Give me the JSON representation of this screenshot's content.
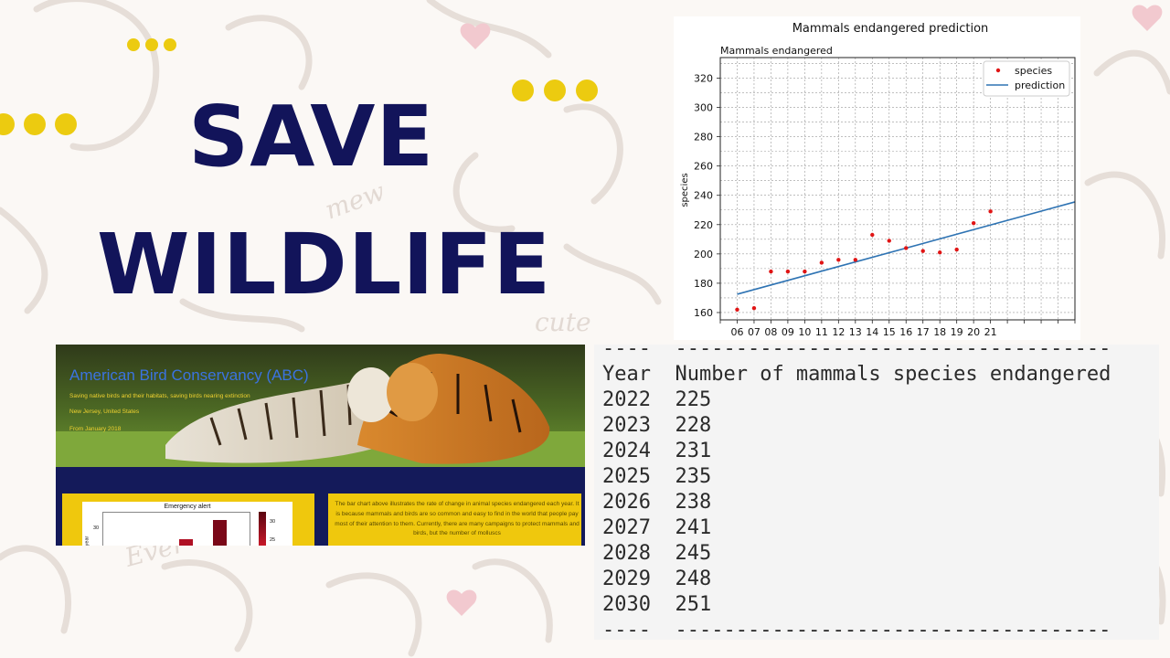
{
  "headline": {
    "line1": "SAVE",
    "line2": "WILDLIFE"
  },
  "colors": {
    "accent_yellow": "#eccb10",
    "navy": "#12145a",
    "background": "#fbf8f5"
  },
  "background_doodles": [
    "mew",
    "cute",
    "Ever"
  ],
  "website_preview": {
    "title": "American Bird Conservancy (ABC)",
    "tagline": "Saving native birds and their habitats, saving birds nearing extinction",
    "location": "New Jersey, United States",
    "since": "From January 2018",
    "inner_chart_title": "Emergency alert",
    "inner_chart_ylabel": "year",
    "inner_chart_tick": "30",
    "colorbar_ticks": [
      "30",
      "25"
    ],
    "paragraph": "The bar chart above illustrates the rate of change in animal species endangered each year. It is because mammals and birds are so common and easy to find in the world that people pay most of their attention to them. Currently, there are many campaigns to protect mammals and birds, but the number of molluscs"
  },
  "prediction_table": {
    "rule_year": "----",
    "rule_value": "------------------------------------",
    "headers": [
      "Year",
      "Number of mammals species endangered"
    ],
    "rows": [
      [
        "2022",
        "225"
      ],
      [
        "2023",
        "228"
      ],
      [
        "2024",
        "231"
      ],
      [
        "2025",
        "235"
      ],
      [
        "2026",
        "238"
      ],
      [
        "2027",
        "241"
      ],
      [
        "2028",
        "245"
      ],
      [
        "2029",
        "248"
      ],
      [
        "2030",
        "251"
      ]
    ]
  },
  "chart_data": {
    "type": "scatter",
    "title": "Mammals endangered prediction",
    "subtitle": "Mammals endangered",
    "xlabel": "",
    "ylabel": "species",
    "x": [
      "06",
      "07",
      "08",
      "09",
      "10",
      "11",
      "12",
      "13",
      "14",
      "15",
      "16",
      "17",
      "18",
      "19",
      "20",
      "21"
    ],
    "series": [
      {
        "name": "species",
        "kind": "points",
        "color": "#e01515",
        "values": [
          162,
          163,
          188,
          188,
          188,
          194,
          196,
          196,
          213,
          209,
          204,
          202,
          201,
          203,
          221,
          229
        ]
      },
      {
        "name": "prediction",
        "kind": "line",
        "color": "#2e73b3",
        "from": [
          6,
          172.5
        ],
        "to": [
          26,
          235.5
        ]
      }
    ],
    "xlim": [
      5,
      26
    ],
    "ylim": [
      155,
      334
    ],
    "yticks": [
      160,
      180,
      200,
      220,
      240,
      260,
      280,
      300,
      320
    ],
    "grid": true,
    "legend": "top-right"
  }
}
